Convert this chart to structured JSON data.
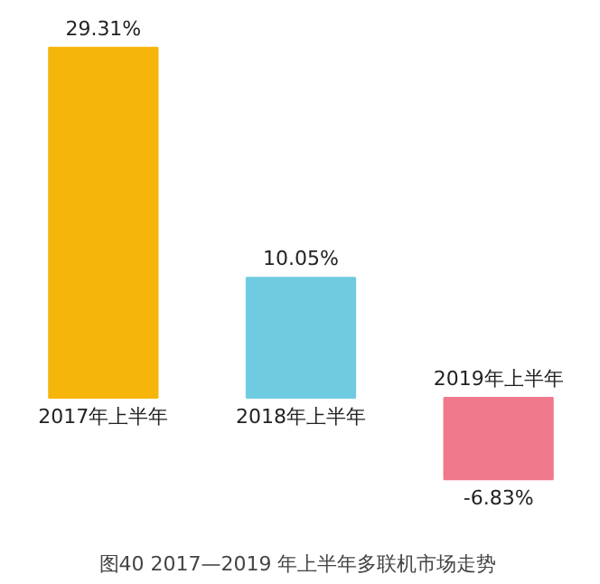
{
  "chart_data": {
    "type": "bar",
    "title": "图40  2017—2019 年上半年多联机市场走势",
    "categories": [
      "2017年上半年",
      "2018年上半年",
      "2019年上半年"
    ],
    "values": [
      29.31,
      10.05,
      -6.83
    ],
    "colors": [
      "#f5b50a",
      "#6fcbe0",
      "#ef7a8c"
    ],
    "value_labels": [
      "29.31%",
      "10.05%",
      "-6.83%"
    ]
  }
}
